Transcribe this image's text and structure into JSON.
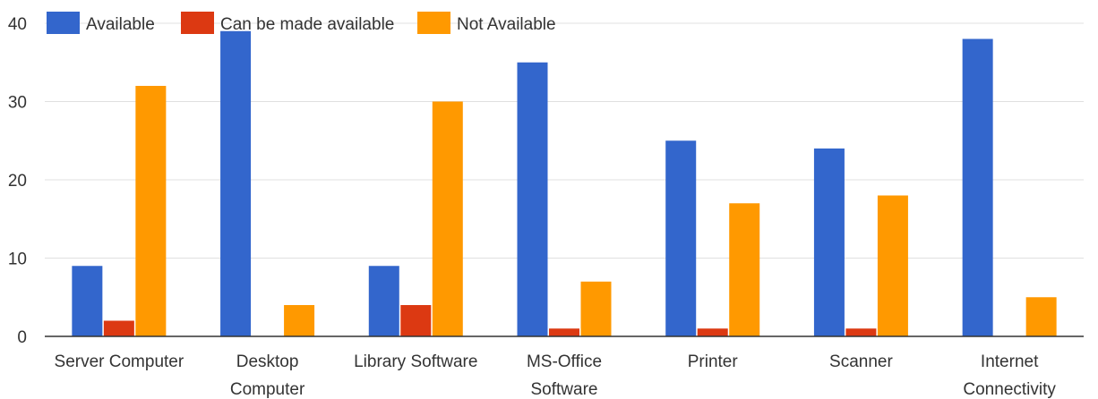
{
  "chart_data": {
    "type": "bar",
    "categories": [
      [
        "Server Computer"
      ],
      [
        "Desktop",
        "Computer"
      ],
      [
        "Library Software"
      ],
      [
        "MS-Office",
        "Software"
      ],
      [
        "Printer"
      ],
      [
        "Scanner"
      ],
      [
        "Internet",
        "Connectivity"
      ]
    ],
    "series": [
      {
        "name": "Available",
        "color": "#3366cc",
        "values": [
          9,
          39,
          9,
          35,
          25,
          24,
          38
        ]
      },
      {
        "name": "Can be made available",
        "color": "#dc3912",
        "values": [
          2,
          0,
          4,
          1,
          1,
          1,
          0
        ]
      },
      {
        "name": "Not Available",
        "color": "#ff9900",
        "values": [
          32,
          4,
          30,
          7,
          17,
          18,
          5
        ]
      }
    ],
    "yticks": [
      0,
      10,
      20,
      30,
      40
    ],
    "ylim": [
      0,
      40
    ],
    "grid": true,
    "legend_position": "top-left",
    "title": "",
    "xlabel": "",
    "ylabel": ""
  }
}
